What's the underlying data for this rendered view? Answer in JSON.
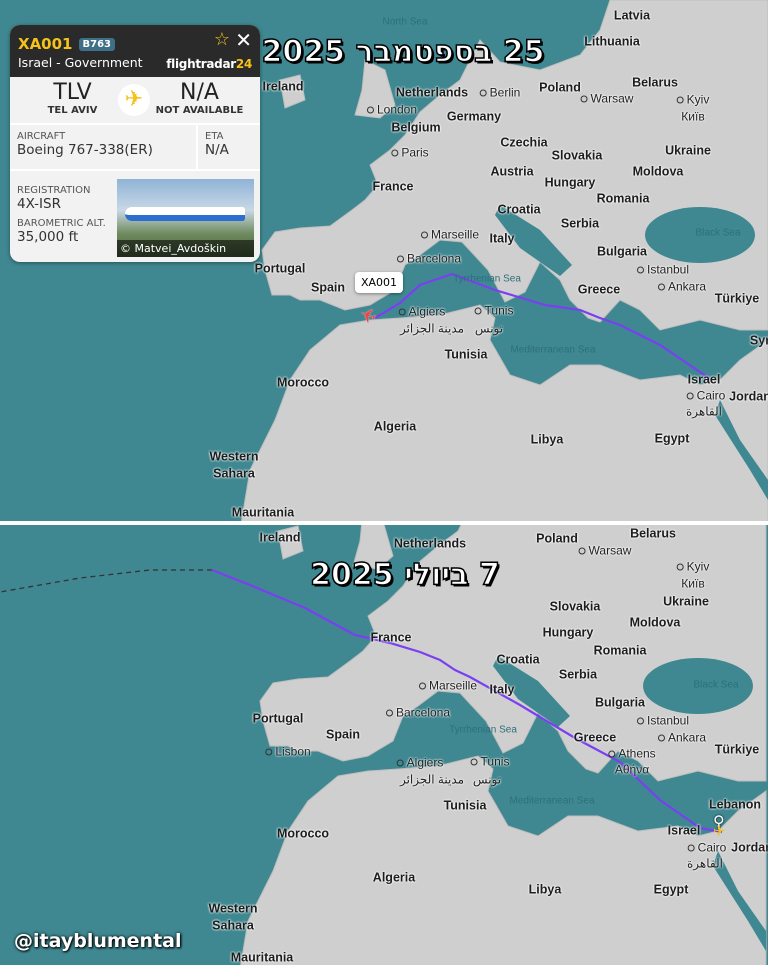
{
  "panels": [
    {
      "title": "25 בספטמבר 2025",
      "path_color": "#7b3ff2",
      "flight_label": "XA001",
      "plane_icon": "plane-icon-red",
      "labels": [
        "North Sea",
        "Latvia",
        "Lithuania",
        "Ireland",
        "Netherlands",
        "Berlin",
        "Poland",
        "Belarus",
        "London",
        "Warsaw",
        "Kyiv",
        "Київ",
        "Germany",
        "Belgium",
        "Czechia",
        "Paris",
        "Slovakia",
        "Ukraine",
        "Austria",
        "Hungary",
        "Moldova",
        "France",
        "Croatia",
        "Romania",
        "Serbia",
        "Black Sea",
        "Marseille",
        "Italy",
        "Bulgaria",
        "Barcelona",
        "Istanbul",
        "Portugal",
        "Spain",
        "Tyrrhenian Sea",
        "Greece",
        "Ankara",
        "Türkiye",
        "Algiers",
        "Tunis",
        "مدينة الجزائر",
        "تونس",
        "Tunisia",
        "Mediterranean Sea",
        "Morocco",
        "Israel",
        "Cairo",
        "القاهرة",
        "Jordan",
        "Algeria",
        "Libya",
        "Egypt",
        "Western",
        "Sahara",
        "Mauritania",
        "Syr"
      ]
    },
    {
      "title": "7 ביולי 2025",
      "path_color": "#7b3ff2",
      "marker_icon": "location-pin-icon",
      "labels": [
        "Ireland",
        "Netherlands",
        "Poland",
        "Belarus",
        "Warsaw",
        "Kyiv",
        "Київ",
        "Slovakia",
        "Ukraine",
        "Hungary",
        "Moldova",
        "France",
        "Croatia",
        "Romania",
        "Serbia",
        "Black Sea",
        "Marseille",
        "Italy",
        "Bulgaria",
        "Barcelona",
        "Istanbul",
        "Portugal",
        "Ankara",
        "Lisbon",
        "Spain",
        "Tyrrhenian Sea",
        "Greece",
        "Türkiye",
        "Athens",
        "Αθήνα",
        "Algiers",
        "Tunis",
        "مدينة الجزائر",
        "تونس",
        "Lebanon",
        "Tunisia",
        "Mediterranean Sea",
        "Morocco",
        "Israel",
        "Cairo",
        "القاهرة",
        "Jordan",
        "Algeria",
        "Libya",
        "Egypt",
        "Western",
        "Sahara",
        "Mauritania"
      ]
    }
  ],
  "card": {
    "callsign": "XA001",
    "type_badge": "B763",
    "operator": "Israel - Government",
    "brand": "flightradar",
    "brand_num": "24",
    "origin_code": "TLV",
    "origin_name": "TEL AVIV",
    "dest_code": "N/A",
    "dest_name": "NOT AVAILABLE",
    "aircraft_label": "AIRCRAFT",
    "aircraft": "Boeing 767-338(ER)",
    "eta_label": "ETA",
    "eta": "N/A",
    "registration_label": "REGISTRATION",
    "registration": "4X-ISR",
    "alt_label": "BAROMETRIC ALT.",
    "alt": "35,000 ft",
    "photo_credit": "© Matvei_Avdoškin"
  },
  "watermark": "@itayblumental",
  "colors": {
    "ocean": "#3f8891",
    "land": "#cfcfcf",
    "card_header": "#2a2a2a",
    "accent": "#f4c21a"
  }
}
